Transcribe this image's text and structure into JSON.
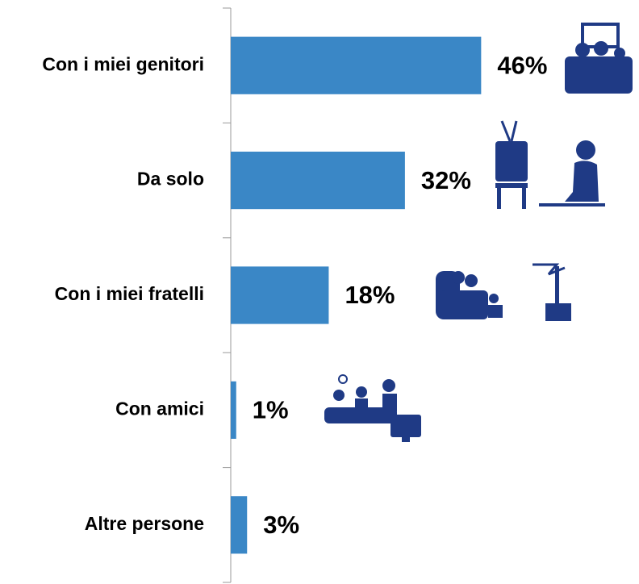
{
  "chart_data": {
    "type": "bar",
    "orientation": "horizontal",
    "categories": [
      "Con i miei genitori",
      "Da solo",
      "Con i miei fratelli",
      "Con amici",
      "Altre persone"
    ],
    "values": [
      46,
      32,
      18,
      1,
      3
    ],
    "value_labels": [
      "46%",
      "32%",
      "18%",
      "1%",
      "3%"
    ],
    "color": "#3a87c6",
    "xlim": [
      0,
      75
    ]
  }
}
